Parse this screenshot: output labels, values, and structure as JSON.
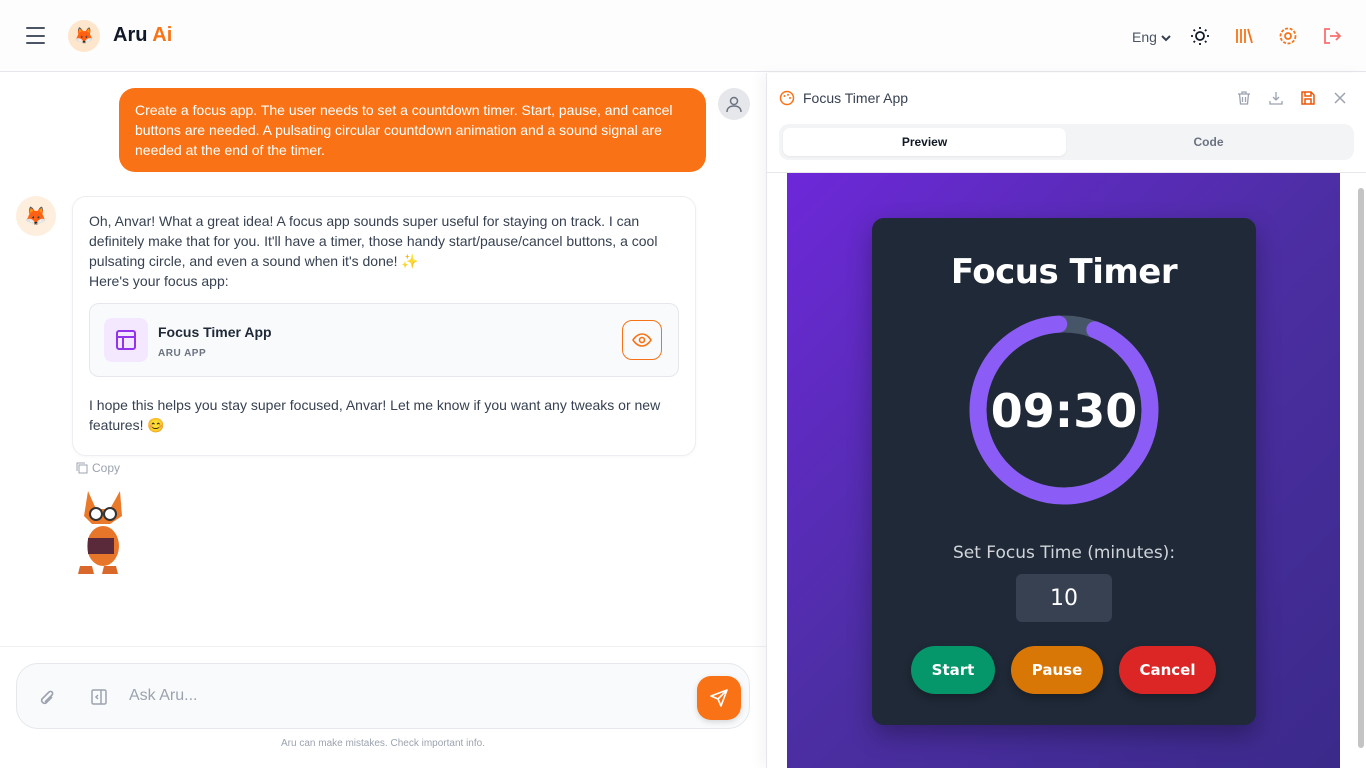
{
  "header": {
    "brand_main": "Aru",
    "brand_accent": "Ai",
    "language": "Eng"
  },
  "chat": {
    "user_message": "Create a focus app. The user needs to set a countdown timer. Start, pause, and cancel buttons are needed. A pulsating circular countdown animation and a sound signal are needed at the end of the timer.",
    "bot_intro": "Oh, Anvar! What a great idea! A focus app sounds super useful for staying on track. I can definitely make that for you. It'll have a timer, those handy start/pause/cancel buttons, a cool pulsating circle, and even a sound when it's done! ✨",
    "bot_lead": "Here's your focus app:",
    "card": {
      "title": "Focus Timer App",
      "subtitle": "ARU APP"
    },
    "bot_outro": "I hope this helps you stay super focused, Anvar! Let me know if you want any tweaks or new features! 😊",
    "copy_label": "Copy"
  },
  "composer": {
    "placeholder": "Ask Aru...",
    "disclaimer": "Aru can make mistakes. Check important info."
  },
  "panel": {
    "title": "Focus Timer App",
    "tabs": [
      {
        "label": "Preview",
        "active": true
      },
      {
        "label": "Code",
        "active": false
      }
    ]
  },
  "app": {
    "title": "Focus Timer",
    "time_left": "09:30",
    "progress_remaining": 0.95,
    "input_label": "Set Focus Time (minutes):",
    "minutes": "10",
    "buttons": {
      "start": "Start",
      "pause": "Pause",
      "cancel": "Cancel"
    },
    "colors": {
      "ring": "#8b5cf6",
      "track": "#475569",
      "start": "#059669",
      "pause": "#d97706",
      "cancel": "#dc2626",
      "accent": "#f97316"
    }
  }
}
